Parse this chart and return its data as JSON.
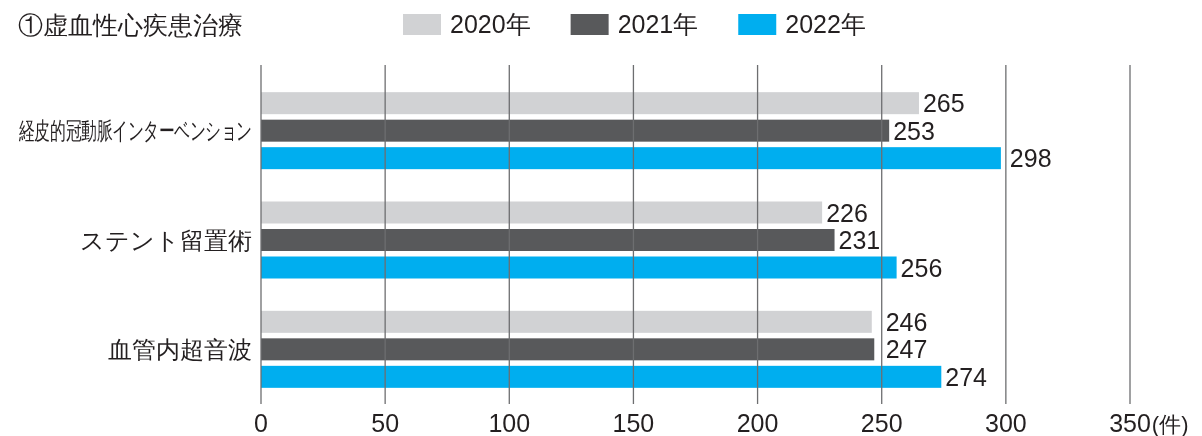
{
  "chart_data": {
    "type": "bar",
    "orientation": "horizontal",
    "title": "①虚血性心疾患治療",
    "xlabel": "(件)",
    "categories": [
      "経皮的冠動脈インターベンション",
      "ステント留置術",
      "血管内超音波"
    ],
    "series": [
      {
        "name": "2020年",
        "color": "#d1d2d4",
        "values": [
          265,
          226,
          246
        ]
      },
      {
        "name": "2021年",
        "color": "#58595b",
        "values": [
          253,
          231,
          247
        ]
      },
      {
        "name": "2022年",
        "color": "#00aeef",
        "values": [
          298,
          256,
          274
        ]
      }
    ],
    "xlim": [
      0,
      350
    ],
    "xticks": [
      0,
      50,
      100,
      150,
      200,
      250,
      300,
      350
    ],
    "grid": "x",
    "legend": "top",
    "data_labels": true
  }
}
